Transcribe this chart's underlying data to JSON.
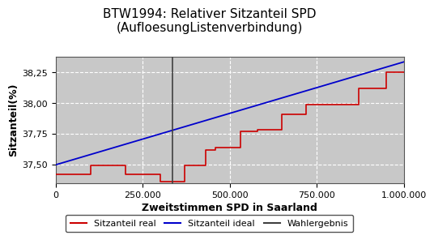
{
  "title": "BTW1994: Relativer Sitzanteil SPD\n(AufloesungListenverbindung)",
  "xlabel": "Zweitstimmen SPD in Saarland",
  "ylabel": "Sitzanteil(%)",
  "xlim": [
    0,
    1000000
  ],
  "ylim": [
    37.35,
    38.38
  ],
  "yticks": [
    37.5,
    37.75,
    38.0,
    38.25
  ],
  "ytick_labels": [
    "37,50",
    "37,75",
    "38,00",
    "38,25"
  ],
  "xticks": [
    0,
    250000,
    500000,
    750000,
    1000000
  ],
  "xtick_labels": [
    "0",
    "250.000",
    "500.000",
    "750.000",
    "1.000.000"
  ],
  "background_color": "#c8c8c8",
  "wahlergebnis_x": 335000,
  "ideal_start_x": 0,
  "ideal_start_y": 37.497,
  "ideal_end_x": 1000000,
  "ideal_end_y": 38.335,
  "real_steps_x": [
    0,
    100000,
    100000,
    200000,
    200000,
    300000,
    300000,
    370000,
    370000,
    430000,
    430000,
    460000,
    460000,
    530000,
    530000,
    580000,
    580000,
    650000,
    650000,
    720000,
    720000,
    800000,
    800000,
    870000,
    870000,
    950000,
    950000,
    1000000
  ],
  "real_steps_y": [
    37.42,
    37.42,
    37.49,
    37.49,
    37.42,
    37.42,
    37.36,
    37.36,
    37.49,
    37.49,
    37.62,
    37.62,
    37.64,
    37.64,
    37.77,
    37.77,
    37.78,
    37.78,
    37.91,
    37.91,
    37.99,
    37.99,
    37.99,
    37.99,
    38.12,
    38.12,
    38.25,
    38.25
  ],
  "line_color_real": "#cc0000",
  "line_color_ideal": "#0000cc",
  "line_color_wahlergebnis": "#404040",
  "legend_labels": [
    "Sitzanteil real",
    "Sitzanteil ideal",
    "Wahlergebnis"
  ],
  "title_fontsize": 11,
  "axis_label_fontsize": 9,
  "tick_fontsize": 8,
  "legend_fontsize": 8
}
